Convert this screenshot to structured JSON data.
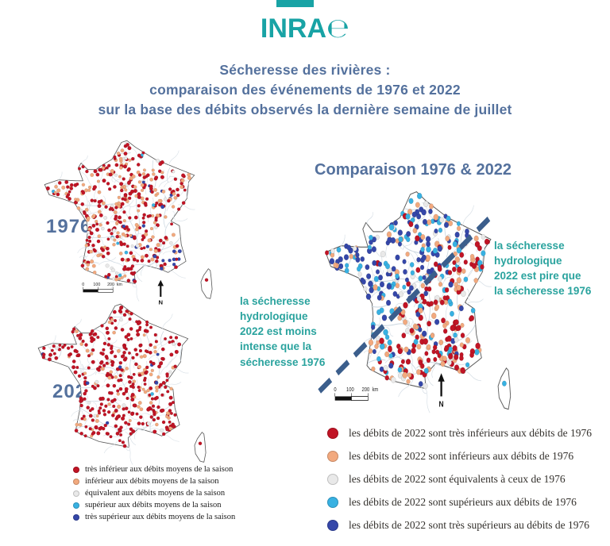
{
  "brand": {
    "logo_prefix": "INRA",
    "logo_suffix": "℮"
  },
  "title": {
    "line1": "Sécheresse des rivières :",
    "line2": "comparaison des événements de 1976 et 2022",
    "line3": "sur la base des débits observés la dernière semaine de juillet"
  },
  "left_maps": {
    "label_1976": "1976",
    "label_2022": "2022"
  },
  "comparison": {
    "title": "Comparaison 1976 & 2022",
    "annotation_left": "la sécheresse\nhydrologique\n2022 est moins\nintense que la\nsécheresse 1976",
    "annotation_right": "la sécheresse\nhydrologique\n2022 est pire que\nla sécheresse 1976"
  },
  "scale_bar": {
    "label_0": "0",
    "label_100": "100",
    "label_200": "200",
    "unit": "km",
    "north": "N"
  },
  "colors": {
    "teal": "#18a3a5",
    "slate": "#54719d",
    "annotation_teal": "#2aa39e",
    "dot_red": "#c11425",
    "dot_orange": "#f2a97e",
    "dot_gray": "#e9e9e9",
    "dot_lightblue": "#38b1e2",
    "dot_darkblue": "#3547a9",
    "dash_line": "#3b5e8c"
  },
  "legend_small": {
    "items": [
      {
        "color": "dot_red",
        "label": "très inférieur aux débits moyens de la saison"
      },
      {
        "color": "dot_orange",
        "label": "inférieur aux débits moyens de la saison"
      },
      {
        "color": "dot_gray",
        "label": "équivalent aux débits moyens de la saison"
      },
      {
        "color": "dot_lightblue",
        "label": "supérieur aux débits moyens de la saison"
      },
      {
        "color": "dot_darkblue",
        "label": "très supérieur aux débits moyens de la saison"
      }
    ]
  },
  "legend_large": {
    "items": [
      {
        "color": "dot_red",
        "label": "les débits de 2022 sont très inférieurs aux débits de 1976"
      },
      {
        "color": "dot_orange",
        "label": "les débits de 2022 sont inférieurs aux débits de 1976"
      },
      {
        "color": "dot_gray",
        "label": "les débits de 2022 sont équivalents à ceux de 1976"
      },
      {
        "color": "dot_lightblue",
        "label": "les débits de 2022 sont supérieurs aux débits de 1976"
      },
      {
        "color": "dot_darkblue",
        "label": "les débits de 2022 sont très supérieurs au débits de 1976"
      }
    ]
  },
  "maps": {
    "map_1976": {
      "dot_count": 440,
      "seed": 7,
      "weights": {
        "dot_red": 0.55,
        "dot_orange": 0.28,
        "dot_gray": 0.08,
        "dot_lightblue": 0.04,
        "dot_darkblue": 0.05
      }
    },
    "map_2022": {
      "dot_count": 420,
      "seed": 13,
      "weights": {
        "dot_red": 0.78,
        "dot_orange": 0.16,
        "dot_gray": 0.03,
        "dot_lightblue": 0.01,
        "dot_darkblue": 0.02
      }
    },
    "map_comparison": {
      "dot_count": 470,
      "seed": 21,
      "weights_northwest": {
        "dot_red": 0.06,
        "dot_orange": 0.17,
        "dot_gray": 0.1,
        "dot_lightblue": 0.22,
        "dot_darkblue": 0.45
      },
      "weights_southeast": {
        "dot_red": 0.47,
        "dot_orange": 0.25,
        "dot_gray": 0.1,
        "dot_lightblue": 0.1,
        "dot_darkblue": 0.08
      }
    }
  }
}
